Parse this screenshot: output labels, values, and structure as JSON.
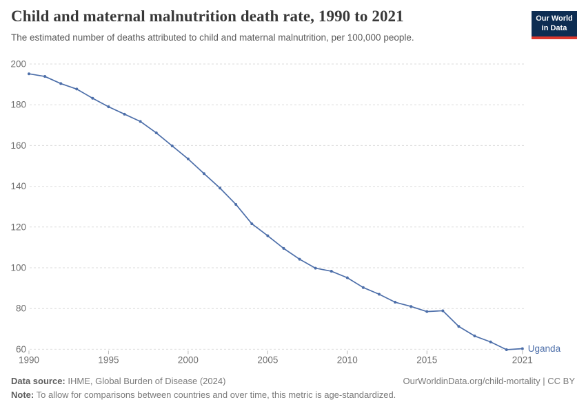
{
  "header": {
    "title": "Child and maternal malnutrition death rate, 1990 to 2021",
    "subtitle": "The estimated number of deaths attributed to child and maternal malnutrition, per 100,000 people.",
    "logo": {
      "line1": "Our World",
      "line2": "in Data",
      "bg_color": "#0d2d52",
      "stripe_color": "#dc382d"
    }
  },
  "chart_data": {
    "type": "line",
    "title": "Child and maternal malnutrition death rate, 1990 to 2021",
    "xlabel": "",
    "ylabel": "",
    "x": [
      1990,
      1991,
      1992,
      1993,
      1994,
      1995,
      1996,
      1997,
      1998,
      1999,
      2000,
      2001,
      2002,
      2003,
      2004,
      2005,
      2006,
      2007,
      2008,
      2009,
      2010,
      2011,
      2012,
      2013,
      2014,
      2015,
      2016,
      2017,
      2018,
      2019,
      2020,
      2021
    ],
    "series": [
      {
        "name": "Uganda",
        "color": "#4c6ea9",
        "values": [
          195.2,
          193.9,
          190.4,
          187.7,
          183.2,
          179.0,
          175.4,
          171.8,
          166.2,
          159.8,
          153.4,
          146.2,
          139.1,
          131.1,
          121.6,
          115.7,
          109.5,
          104.2,
          99.8,
          98.3,
          95.1,
          90.3,
          87.0,
          83.1,
          81.0,
          78.5,
          78.9,
          71.2,
          66.5,
          63.6,
          59.8,
          60.3
        ]
      }
    ],
    "ylim": [
      60,
      200
    ],
    "yticks": [
      60,
      80,
      100,
      120,
      140,
      160,
      180,
      200
    ],
    "xticks": [
      1990,
      1995,
      2000,
      2005,
      2010,
      2015,
      2021
    ],
    "grid": "horizontal-dashed",
    "legend_position": "end-of-line-label",
    "colors": {
      "line": "#4c6ea9",
      "gridline": "#dbdbdb",
      "tick_label": "#6e6e6e",
      "tick_mark": "#b8b8b8",
      "entity_label": "#4c6ea9"
    }
  },
  "footer": {
    "source_label": "Data source:",
    "source_value": " IHME, Global Burden of Disease (2024)",
    "link_text": "OurWorldinData.org/child-mortality | CC BY",
    "note_label": "Note:",
    "note_value": " To allow for comparisons between countries and over time, this metric is age-standardized."
  }
}
